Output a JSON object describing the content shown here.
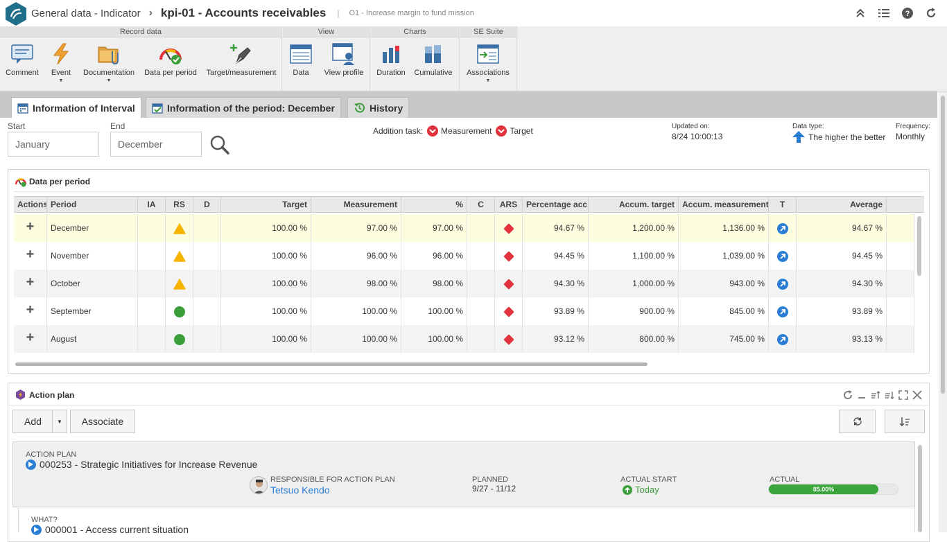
{
  "header": {
    "breadcrumb": "General data - Indicator",
    "separator": "›",
    "title": "kpi-01 - Accounts receivables",
    "title_separator": "|",
    "subtitle": "O1 - Increase margin to fund mission",
    "icons": [
      "collapse-icon",
      "list-icon",
      "help-icon",
      "refresh-icon"
    ]
  },
  "ribbon": {
    "groups": [
      {
        "label": "Record data",
        "buttons": [
          "Comment",
          "Event",
          "Documentation",
          "Data per period",
          "Target/measurement"
        ]
      },
      {
        "label": "View",
        "buttons": [
          "Data",
          "View profile"
        ]
      },
      {
        "label": "Charts",
        "buttons": [
          "Duration",
          "Cumulative"
        ]
      },
      {
        "label": "SE Suite",
        "buttons": [
          "Associations"
        ]
      }
    ]
  },
  "tabs": [
    {
      "label": "Information of Interval",
      "active": true
    },
    {
      "label": "Information of the period: December",
      "active": false
    },
    {
      "label": "History",
      "active": false
    }
  ],
  "filters": {
    "start_label": "Start",
    "start_value": "January",
    "end_label": "End",
    "end_value": "December",
    "addition_task_label": "Addition task:",
    "task_measurement": "Measurement",
    "task_target": "Target",
    "updated_label": "Updated on:",
    "updated_value": "8/24  10:00:13",
    "datatype_label": "Data type:",
    "datatype_value": "The higher the better",
    "frequency_label": "Frequency:",
    "frequency_value": "Monthly"
  },
  "data_panel": {
    "title": "Data per period",
    "columns": [
      "Actions",
      "Period",
      "IA",
      "RS",
      "D",
      "Target",
      "Measurement",
      "%",
      "C",
      "ARS",
      "Percentage acc",
      "Accum. target",
      "Accum. measurement",
      "T",
      "Average"
    ],
    "rows": [
      {
        "period": "December",
        "rs": "warning",
        "target": "100.00 %",
        "measurement": "97.00 %",
        "pct": "97.00 %",
        "ars": "critical",
        "pct_acc": "94.67 %",
        "accum_target": "1,200.00 %",
        "accum_measurement": "1,136.00 %",
        "average": "94.67 %"
      },
      {
        "period": "November",
        "rs": "warning",
        "target": "100.00 %",
        "measurement": "96.00 %",
        "pct": "96.00 %",
        "ars": "critical",
        "pct_acc": "94.45 %",
        "accum_target": "1,100.00 %",
        "accum_measurement": "1,039.00 %",
        "average": "94.45 %"
      },
      {
        "period": "October",
        "rs": "warning",
        "target": "100.00 %",
        "measurement": "98.00 %",
        "pct": "98.00 %",
        "ars": "critical",
        "pct_acc": "94.30 %",
        "accum_target": "1,000.00 %",
        "accum_measurement": "943.00 %",
        "average": "94.30 %"
      },
      {
        "period": "September",
        "rs": "ok",
        "target": "100.00 %",
        "measurement": "100.00 %",
        "pct": "100.00 %",
        "ars": "critical",
        "pct_acc": "93.89 %",
        "accum_target": "900.00 %",
        "accum_measurement": "845.00 %",
        "average": "93.89 %"
      },
      {
        "period": "August",
        "rs": "ok",
        "target": "100.00 %",
        "measurement": "100.00 %",
        "pct": "100.00 %",
        "ars": "critical",
        "pct_acc": "93.12 %",
        "accum_target": "800.00 %",
        "accum_measurement": "745.00 %",
        "average": "93.13 %"
      }
    ]
  },
  "action_plan": {
    "title": "Action plan",
    "add_label": "Add",
    "associate_label": "Associate",
    "card": {
      "kind": "ACTION PLAN",
      "name": "000253 - Strategic Initiatives for Increase Revenue",
      "responsible_label": "RESPONSIBLE FOR ACTION PLAN",
      "responsible": "Tetsuo Kendo",
      "planned_label": "PLANNED",
      "planned_value": "9/27  -  11/12",
      "actual_start_label": "ACTUAL START",
      "actual_start_value": "Today",
      "actual_label": "ACTUAL",
      "progress": 0.85,
      "progress_text": "85.00%"
    },
    "sub": {
      "label": "WHAT?",
      "name": "000001 - Access current situation"
    }
  },
  "colors": {
    "brand": "#1f6f8b",
    "warning": "#f5b400",
    "ok": "#3b9e3b",
    "critical": "#e2323c",
    "trend": "#2a7fd4",
    "highlight_row": "#fdfde0"
  }
}
